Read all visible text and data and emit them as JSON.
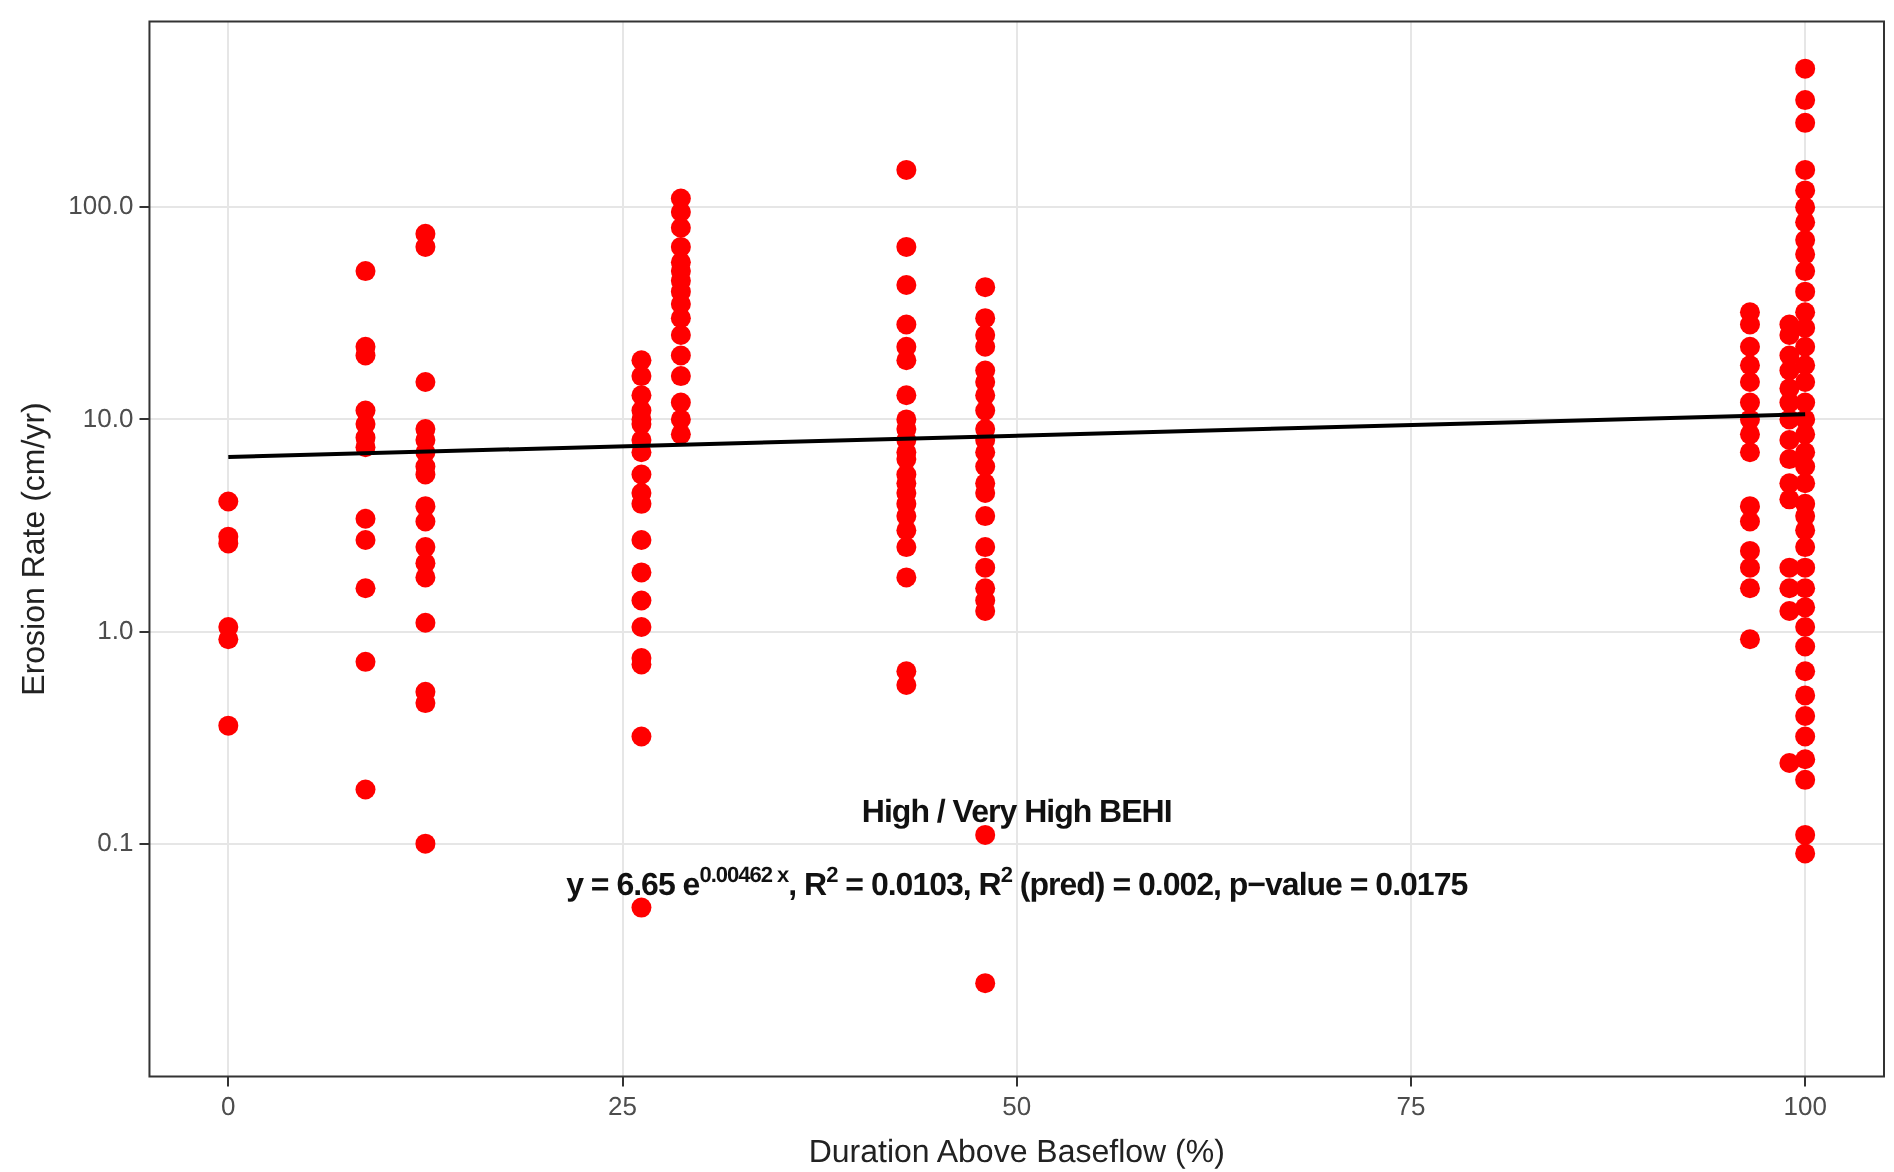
{
  "chart_data": {
    "type": "scatter",
    "xlabel": "Duration Above Baseflow (%)",
    "ylabel": "Erosion Rate (cm/yr)",
    "log": "y",
    "grid": true,
    "legend": false,
    "marker": "circle",
    "xlim": [
      -5,
      105
    ],
    "xticks": [
      0,
      25,
      50,
      75,
      100
    ],
    "ylim": [
      0.008,
      750
    ],
    "yticks": [
      {
        "value": 0.1,
        "label": "0.1"
      },
      {
        "value": 1,
        "label": "1.0"
      },
      {
        "value": 10,
        "label": "10.0"
      },
      {
        "value": 100,
        "label": "100.0"
      }
    ],
    "annotations": [
      "High / Very High BEHI",
      "y = 6.65 e$^{0.00462 x}$,  R$^{2}$ = 0.0103,  R$^{2}$ (pred) = 0.002,  p−value = 0.0175"
    ],
    "series": [
      {
        "color": "#ff0000",
        "x": [
          0,
          0,
          0,
          0,
          0,
          0,
          8.7,
          8.7,
          8.7,
          8.7,
          8.7,
          8.7,
          8.7,
          8.7,
          8.7,
          8.7,
          8.7,
          8.7,
          12.5,
          12.5,
          12.5,
          12.5,
          12.5,
          12.5,
          12.5,
          12.5,
          12.5,
          12.5,
          12.5,
          12.5,
          12.5,
          12.5,
          12.5,
          12.5,
          12.5,
          26.2,
          26.2,
          26.2,
          26.2,
          26.2,
          26.2,
          26.2,
          26.2,
          26.2,
          26.2,
          26.2,
          26.2,
          26.2,
          26.2,
          26.2,
          26.2,
          26.2,
          26.2,
          26.2,
          28.7,
          28.7,
          28.7,
          28.7,
          28.7,
          28.7,
          28.7,
          28.7,
          28.7,
          28.7,
          28.7,
          28.7,
          28.7,
          28.7,
          28.7,
          28.7,
          43,
          43,
          43,
          43,
          43,
          43,
          43,
          43,
          43,
          43,
          43,
          43,
          43,
          43,
          43,
          43,
          43,
          43,
          43,
          43,
          43,
          43,
          48,
          48,
          48,
          48,
          48,
          48,
          48,
          48,
          48,
          48,
          48,
          48,
          48,
          48,
          48,
          48,
          48,
          48,
          48,
          48,
          48,
          48,
          96.5,
          96.5,
          96.5,
          96.5,
          96.5,
          96.5,
          96.5,
          96.5,
          96.5,
          96.5,
          96.5,
          96.5,
          96.5,
          96.5,
          96.5,
          99,
          99,
          99,
          99,
          99,
          99,
          99,
          99,
          99,
          99,
          99,
          99,
          99,
          99,
          99,
          100,
          100,
          100,
          100,
          100,
          100,
          100,
          100,
          100,
          100,
          100,
          100,
          100,
          100,
          100,
          100,
          100,
          100,
          100,
          100,
          100,
          100,
          100,
          100,
          100,
          100,
          100,
          100,
          100,
          100,
          100,
          100,
          100,
          100,
          100,
          100,
          100,
          100,
          100
        ],
        "values": [
          4.1,
          2.8,
          2.6,
          1.05,
          0.92,
          0.36,
          50,
          22,
          20,
          11,
          9.5,
          8.2,
          7.4,
          3.4,
          2.7,
          1.6,
          0.72,
          0.18,
          75,
          65,
          15,
          9,
          8,
          7,
          6,
          5.5,
          3.9,
          3.3,
          2.5,
          2.1,
          1.8,
          1.1,
          0.52,
          0.46,
          0.1,
          19,
          16,
          13,
          11,
          10,
          9.5,
          8,
          7,
          5.5,
          4.5,
          4,
          2.7,
          1.9,
          1.4,
          1.05,
          0.75,
          0.7,
          0.32,
          0.05,
          110,
          95,
          80,
          65,
          55,
          50,
          45,
          40,
          35,
          30,
          25,
          20,
          16,
          12,
          10,
          8.5,
          150,
          65,
          43,
          28,
          22,
          19,
          13,
          10,
          9,
          8,
          7,
          6.5,
          5.5,
          5,
          4.5,
          4,
          3.5,
          3,
          2.5,
          1.8,
          0.65,
          0.56,
          42,
          30,
          25,
          22,
          17,
          15,
          13,
          11,
          9,
          8,
          7,
          6,
          5,
          4.5,
          3.5,
          2.5,
          2,
          1.6,
          1.4,
          1.25,
          0.11,
          0.022,
          32,
          28,
          22,
          18,
          15,
          12,
          10,
          8.5,
          7,
          3.9,
          3.3,
          2.4,
          2,
          1.6,
          0.92,
          28,
          25,
          20,
          17,
          14,
          12,
          10,
          8,
          6.5,
          5,
          4.2,
          2,
          1.6,
          1.25,
          0.24,
          450,
          320,
          250,
          150,
          120,
          100,
          85,
          70,
          60,
          50,
          40,
          32,
          27,
          22,
          18,
          15,
          12,
          10,
          8.5,
          7,
          6,
          5,
          4,
          3.5,
          3,
          2.5,
          2,
          1.6,
          1.3,
          1.05,
          0.85,
          0.65,
          0.5,
          0.4,
          0.32,
          0.25,
          0.2,
          0.11,
          0.09
        ]
      },
      {
        "type": "line",
        "color": "#000000",
        "marker": "none",
        "x": [
          0,
          100
        ],
        "values": [
          6.65,
          10.56
        ]
      }
    ]
  }
}
